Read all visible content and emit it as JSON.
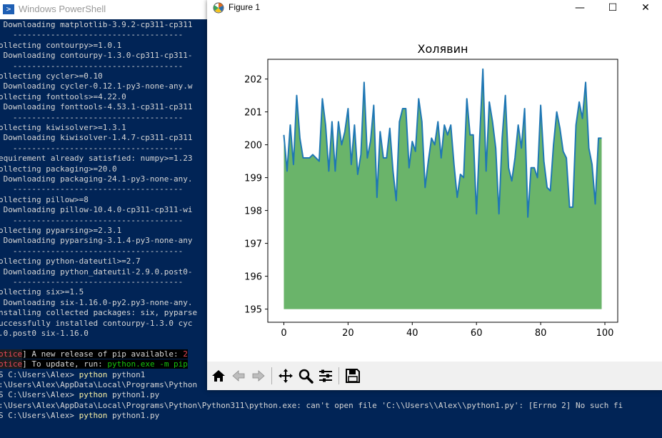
{
  "powershell": {
    "title": "Windows PowerShell",
    "lines": [
      {
        "text": " Downloading matplotlib-3.9.2-cp311-cp311"
      },
      {
        "text": "   ------------------------------------"
      },
      {
        "text": "ollecting contourpy>=1.0.1"
      },
      {
        "text": " Downloading contourpy-1.3.0-cp311-cp311-"
      },
      {
        "text": "   ------------------------------------"
      },
      {
        "text": "ollecting cycler>=0.10"
      },
      {
        "text": " Downloading cycler-0.12.1-py3-none-any.w"
      },
      {
        "text": "ollecting fonttools>=4.22.0"
      },
      {
        "text": " Downloading fonttools-4.53.1-cp311-cp311"
      },
      {
        "text": "   ------------------------------------"
      },
      {
        "text": "ollecting kiwisolver>=1.3.1"
      },
      {
        "text": " Downloading kiwisolver-1.4.7-cp311-cp311"
      },
      {
        "text": "   ------------------------------------"
      },
      {
        "text": "equirement already satisfied: numpy>=1.23"
      },
      {
        "text": "ollecting packaging>=20.0"
      },
      {
        "text": " Downloading packaging-24.1-py3-none-any."
      },
      {
        "text": "   ------------------------------------"
      },
      {
        "text": "ollecting pillow>=8"
      },
      {
        "text": " Downloading pillow-10.4.0-cp311-cp311-wi"
      },
      {
        "text": "   ------------------------------------"
      },
      {
        "text": "ollecting pyparsing>=2.3.1"
      },
      {
        "text": " Downloading pyparsing-3.1.4-py3-none-any"
      },
      {
        "text": "   ------------------------------------"
      },
      {
        "text": "ollecting python-dateutil>=2.7"
      },
      {
        "text": " Downloading python_dateutil-2.9.0.post0-"
      },
      {
        "text": "   ------------------------------------"
      },
      {
        "text": "ollecting six>=1.5"
      },
      {
        "text": " Downloading six-1.16.0-py2.py3-none-any."
      },
      {
        "text": "nstalling collected packages: six, pyparse"
      },
      {
        "text": "uccessfully installed contourpy-1.3.0 cyc"
      },
      {
        "text": ".0.post0 six-1.16.0"
      }
    ],
    "notice_1": {
      "word": "otice",
      "text": "] A new release of pip available: ",
      "highlight": "2"
    },
    "notice_2": {
      "word": "otice",
      "text": "] To update, run: ",
      "command": "python.exe -m pip"
    },
    "prompt_lines": [
      {
        "prompt": "S C:\\Users\\Alex> ",
        "cmd": "python",
        "args": " python1"
      },
      {
        "text": ":\\Users\\Alex\\AppData\\Local\\Programs\\Python"
      },
      {
        "prompt": "S C:\\Users\\Alex> ",
        "cmd": "python",
        "args": " python1.py"
      },
      {
        "text": ":\\Users\\Alex\\AppData\\Local\\Programs\\Python\\Python311\\python.exe: can't open file 'C:\\\\Users\\\\Alex\\\\python1.py': [Errno 2] No such fi"
      },
      {
        "prompt": "S C:\\Users\\Alex> ",
        "cmd": "python",
        "args": " python1.py"
      }
    ]
  },
  "figure": {
    "window_title": "Figure 1",
    "controls": {
      "minimize": "—",
      "maximize": "☐",
      "close": "✕"
    },
    "toolbar": [
      {
        "name": "home-icon",
        "glyph": "home"
      },
      {
        "name": "back-icon",
        "glyph": "back"
      },
      {
        "name": "forward-icon",
        "glyph": "forward"
      },
      {
        "name": "pan-icon",
        "glyph": "pan"
      },
      {
        "name": "zoom-icon",
        "glyph": "zoom"
      },
      {
        "name": "subplots-icon",
        "glyph": "subplots"
      },
      {
        "name": "save-icon",
        "glyph": "save"
      }
    ]
  },
  "chart_data": {
    "type": "area",
    "title": "Холявин",
    "xlabel": "",
    "ylabel": "",
    "xlim": [
      -5,
      104
    ],
    "ylim": [
      194.6,
      202.6
    ],
    "xticks": [
      0,
      20,
      40,
      60,
      80,
      100
    ],
    "yticks": [
      195,
      196,
      197,
      198,
      199,
      200,
      201,
      202
    ],
    "baseline": 195,
    "line_color": "#1f77b4",
    "fill_color": "#6ab46a",
    "grid": false,
    "x": [
      0,
      1,
      2,
      3,
      4,
      5,
      6,
      7,
      8,
      9,
      10,
      11,
      12,
      13,
      14,
      15,
      16,
      17,
      18,
      19,
      20,
      21,
      22,
      23,
      24,
      25,
      26,
      27,
      28,
      29,
      30,
      31,
      32,
      33,
      34,
      35,
      36,
      37,
      38,
      39,
      40,
      41,
      42,
      43,
      44,
      45,
      46,
      47,
      48,
      49,
      50,
      51,
      52,
      53,
      54,
      55,
      56,
      57,
      58,
      59,
      60,
      61,
      62,
      63,
      64,
      65,
      66,
      67,
      68,
      69,
      70,
      71,
      72,
      73,
      74,
      75,
      76,
      77,
      78,
      79,
      80,
      81,
      82,
      83,
      84,
      85,
      86,
      87,
      88,
      89,
      90,
      91,
      92,
      93,
      94,
      95,
      96,
      97,
      98,
      99
    ],
    "y": [
      200.3,
      199.2,
      200.6,
      199.4,
      201.5,
      200.2,
      199.6,
      199.6,
      199.6,
      199.7,
      199.6,
      199.5,
      201.4,
      200.6,
      199.2,
      200.7,
      199.2,
      200.7,
      200.0,
      200.4,
      201.1,
      199.4,
      200.6,
      199.1,
      199.7,
      201.9,
      199.6,
      200.1,
      201.2,
      198.4,
      200.4,
      199.6,
      199.6,
      200.5,
      199.2,
      198.3,
      200.7,
      201.1,
      201.1,
      199.3,
      200.1,
      199.8,
      201.4,
      200.7,
      198.7,
      199.5,
      200.2,
      200.0,
      200.7,
      199.6,
      200.6,
      200.3,
      200.6,
      199.4,
      198.4,
      199.1,
      199.0,
      201.4,
      200.3,
      200.3,
      197.9,
      200.2,
      202.3,
      199.2,
      201.3,
      200.7,
      199.9,
      197.9,
      200.2,
      201.5,
      199.3,
      198.9,
      199.6,
      200.6,
      199.9,
      201.1,
      197.8,
      199.3,
      199.3,
      199.0,
      201.2,
      199.5,
      198.7,
      198.6,
      200.0,
      201.0,
      200.5,
      199.8,
      199.6,
      198.1,
      198.1,
      200.6,
      201.3,
      200.8,
      201.9,
      199.9,
      199.4,
      198.2,
      200.2,
      200.2
    ]
  }
}
